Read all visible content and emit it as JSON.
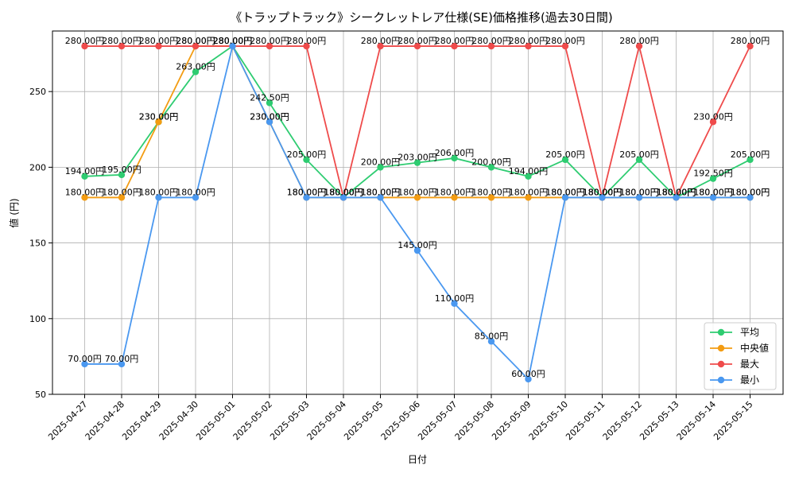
{
  "chart_data": {
    "type": "line",
    "title": "《トラップトラック》シークレットレア仕様(SE)価格推移(過去30日間)",
    "xlabel": "日付",
    "ylabel": "値 (円)",
    "ylim": [
      50,
      290
    ],
    "yticks": [
      50,
      100,
      150,
      200,
      250
    ],
    "grid": true,
    "legend_position": "bottom-right",
    "label_suffix": "円",
    "categories": [
      "2025-04-27",
      "2025-04-28",
      "2025-04-29",
      "2025-04-30",
      "2025-05-01",
      "2025-05-02",
      "2025-05-03",
      "2025-05-04",
      "2025-05-05",
      "2025-05-06",
      "2025-05-07",
      "2025-05-08",
      "2025-05-09",
      "2025-05-10",
      "2025-05-11",
      "2025-05-12",
      "2025-05-13",
      "2025-05-14",
      "2025-05-15"
    ],
    "series": [
      {
        "name": "平均",
        "color": "#2ecc71",
        "values": [
          194,
          195,
          230,
          263,
          280,
          242.5,
          205,
          180,
          200,
          203,
          206,
          200,
          194,
          205,
          180,
          205,
          180,
          192.5,
          205
        ]
      },
      {
        "name": "中央値",
        "color": "#f39c12",
        "values": [
          180,
          180,
          230,
          280,
          280,
          230,
          180,
          180,
          180,
          180,
          180,
          180,
          180,
          180,
          180,
          180,
          180,
          180,
          180
        ]
      },
      {
        "name": "最大",
        "color": "#ef4b4b",
        "values": [
          280,
          280,
          280,
          280,
          280,
          280,
          280,
          180,
          280,
          280,
          280,
          280,
          280,
          280,
          180,
          280,
          180,
          230,
          280
        ]
      },
      {
        "name": "最小",
        "color": "#4a98f0",
        "values": [
          70,
          70,
          180,
          180,
          280,
          230,
          180,
          180,
          180,
          145,
          110,
          85,
          60,
          180,
          180,
          180,
          180,
          180,
          180
        ]
      }
    ]
  }
}
